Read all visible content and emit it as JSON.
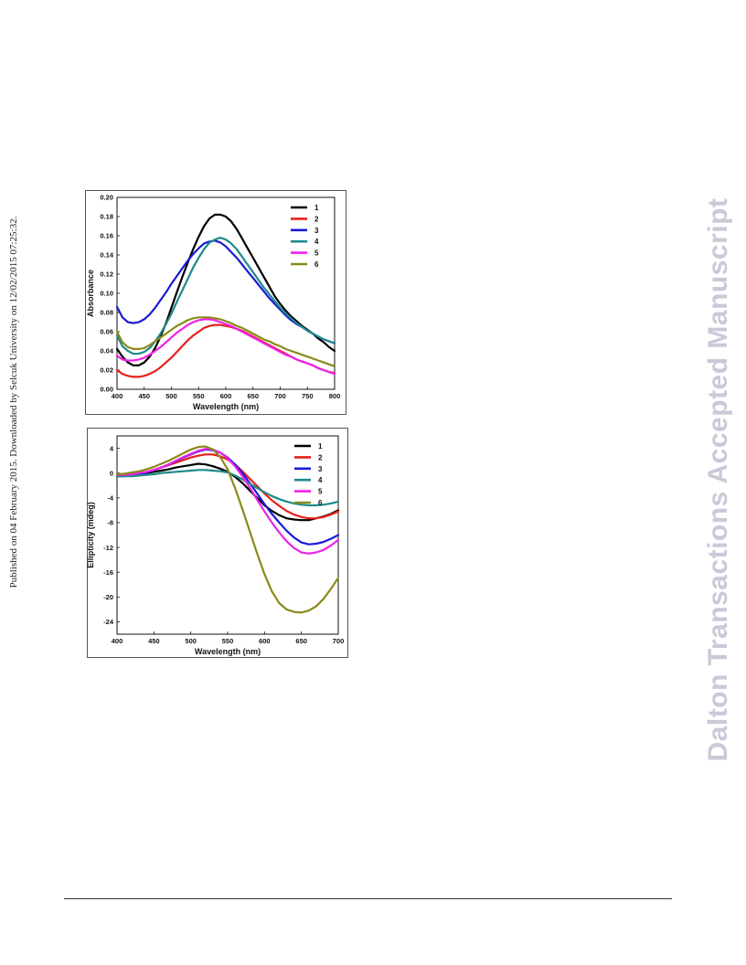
{
  "sidebar": {
    "text": "Published on 04 February 2015. Downloaded by Selcuk University on 12/02/2015 07:25:32."
  },
  "watermark": {
    "text": "Dalton Transactions Accepted Manuscript"
  },
  "chart_data": [
    {
      "type": "line",
      "xlabel": "Wavelength (nm)",
      "ylabel": "Absorbance",
      "xlim": [
        400,
        800
      ],
      "ylim": [
        0,
        0.2
      ],
      "xticks": [
        400,
        450,
        500,
        550,
        600,
        650,
        700,
        750,
        800
      ],
      "yticks": [
        0.0,
        0.02,
        0.04,
        0.06,
        0.08,
        0.1,
        0.12,
        0.14,
        0.16,
        0.18,
        0.2
      ],
      "ytick_decimals": 2,
      "grid": false,
      "legend_position": "top-right",
      "series": [
        {
          "name": "1",
          "color": "#000000",
          "x": [
            400,
            410,
            420,
            430,
            440,
            450,
            460,
            470,
            480,
            490,
            500,
            510,
            520,
            530,
            540,
            550,
            560,
            570,
            580,
            590,
            600,
            610,
            620,
            630,
            640,
            650,
            660,
            670,
            680,
            690,
            700,
            710,
            720,
            730,
            740,
            750,
            760,
            770,
            780,
            790,
            800
          ],
          "y": [
            0.042,
            0.034,
            0.028,
            0.025,
            0.025,
            0.028,
            0.034,
            0.043,
            0.055,
            0.069,
            0.085,
            0.101,
            0.117,
            0.132,
            0.146,
            0.159,
            0.17,
            0.178,
            0.182,
            0.182,
            0.18,
            0.175,
            0.167,
            0.157,
            0.147,
            0.137,
            0.127,
            0.117,
            0.107,
            0.097,
            0.089,
            0.082,
            0.076,
            0.071,
            0.066,
            0.062,
            0.058,
            0.053,
            0.049,
            0.044,
            0.04
          ]
        },
        {
          "name": "2",
          "color": "#e8201c",
          "x": [
            400,
            410,
            420,
            430,
            440,
            450,
            460,
            470,
            480,
            490,
            500,
            510,
            520,
            530,
            540,
            550,
            560,
            570,
            580,
            590,
            600,
            610,
            620,
            630,
            640,
            650,
            660,
            670,
            680,
            690,
            700,
            710,
            720,
            730,
            740,
            750,
            760,
            770,
            780,
            790,
            800
          ],
          "y": [
            0.02,
            0.016,
            0.014,
            0.013,
            0.013,
            0.014,
            0.016,
            0.019,
            0.023,
            0.028,
            0.033,
            0.039,
            0.045,
            0.051,
            0.056,
            0.06,
            0.064,
            0.066,
            0.067,
            0.067,
            0.066,
            0.065,
            0.063,
            0.061,
            0.058,
            0.055,
            0.052,
            0.049,
            0.046,
            0.043,
            0.04,
            0.037,
            0.034,
            0.031,
            0.029,
            0.027,
            0.025,
            0.022,
            0.02,
            0.018,
            0.017
          ]
        },
        {
          "name": "3",
          "color": "#1a1ad8",
          "x": [
            400,
            410,
            420,
            430,
            440,
            450,
            460,
            470,
            480,
            490,
            500,
            510,
            520,
            530,
            540,
            550,
            560,
            570,
            580,
            590,
            600,
            610,
            620,
            630,
            640,
            650,
            660,
            670,
            680,
            690,
            700,
            710,
            720,
            730,
            740,
            750,
            760,
            770,
            780,
            790,
            800
          ],
          "y": [
            0.086,
            0.075,
            0.07,
            0.069,
            0.07,
            0.073,
            0.078,
            0.085,
            0.093,
            0.101,
            0.11,
            0.118,
            0.126,
            0.134,
            0.141,
            0.147,
            0.152,
            0.154,
            0.155,
            0.153,
            0.149,
            0.143,
            0.137,
            0.13,
            0.123,
            0.116,
            0.109,
            0.102,
            0.095,
            0.089,
            0.083,
            0.077,
            0.072,
            0.068,
            0.065,
            0.061,
            0.058,
            0.055,
            0.052,
            0.05,
            0.048
          ]
        },
        {
          "name": "4",
          "color": "#1e8a8a",
          "x": [
            400,
            410,
            420,
            430,
            440,
            450,
            460,
            470,
            480,
            490,
            500,
            510,
            520,
            530,
            540,
            550,
            560,
            570,
            580,
            590,
            600,
            610,
            620,
            630,
            640,
            650,
            660,
            670,
            680,
            690,
            700,
            710,
            720,
            730,
            740,
            750,
            760,
            770,
            780,
            790,
            800
          ],
          "y": [
            0.056,
            0.045,
            0.04,
            0.037,
            0.037,
            0.039,
            0.043,
            0.05,
            0.058,
            0.068,
            0.079,
            0.091,
            0.103,
            0.115,
            0.127,
            0.137,
            0.146,
            0.153,
            0.156,
            0.158,
            0.156,
            0.152,
            0.146,
            0.138,
            0.13,
            0.122,
            0.114,
            0.106,
            0.099,
            0.092,
            0.085,
            0.079,
            0.074,
            0.069,
            0.065,
            0.061,
            0.058,
            0.055,
            0.052,
            0.05,
            0.048
          ]
        },
        {
          "name": "5",
          "color": "#f020e8",
          "x": [
            400,
            410,
            420,
            430,
            440,
            450,
            460,
            470,
            480,
            490,
            500,
            510,
            520,
            530,
            540,
            550,
            560,
            570,
            580,
            590,
            600,
            610,
            620,
            630,
            640,
            650,
            660,
            670,
            680,
            690,
            700,
            710,
            720,
            730,
            740,
            750,
            760,
            770,
            780,
            790,
            800
          ],
          "y": [
            0.035,
            0.031,
            0.03,
            0.03,
            0.031,
            0.033,
            0.036,
            0.04,
            0.044,
            0.049,
            0.054,
            0.059,
            0.063,
            0.067,
            0.07,
            0.072,
            0.073,
            0.073,
            0.072,
            0.07,
            0.068,
            0.066,
            0.063,
            0.06,
            0.057,
            0.054,
            0.051,
            0.048,
            0.045,
            0.042,
            0.039,
            0.036,
            0.034,
            0.031,
            0.029,
            0.027,
            0.025,
            0.022,
            0.02,
            0.018,
            0.016
          ]
        },
        {
          "name": "6",
          "color": "#8a8a1a",
          "x": [
            400,
            410,
            420,
            430,
            440,
            450,
            460,
            470,
            480,
            490,
            500,
            510,
            520,
            530,
            540,
            550,
            560,
            570,
            580,
            590,
            600,
            610,
            620,
            630,
            640,
            650,
            660,
            670,
            680,
            690,
            700,
            710,
            720,
            730,
            740,
            750,
            760,
            770,
            780,
            790,
            800
          ],
          "y": [
            0.06,
            0.049,
            0.044,
            0.042,
            0.042,
            0.043,
            0.046,
            0.05,
            0.054,
            0.058,
            0.062,
            0.066,
            0.069,
            0.072,
            0.074,
            0.075,
            0.075,
            0.075,
            0.074,
            0.073,
            0.071,
            0.069,
            0.066,
            0.064,
            0.061,
            0.058,
            0.055,
            0.052,
            0.05,
            0.047,
            0.045,
            0.042,
            0.04,
            0.038,
            0.036,
            0.034,
            0.032,
            0.03,
            0.028,
            0.026,
            0.024
          ]
        }
      ]
    },
    {
      "type": "line",
      "xlabel": "Wavelength (nm)",
      "ylabel": "Ellipticity (mdeg)",
      "xlim": [
        400,
        700
      ],
      "ylim": [
        -26,
        6
      ],
      "xticks": [
        400,
        450,
        500,
        550,
        600,
        650,
        700
      ],
      "yticks": [
        -24,
        -20,
        -16,
        -12,
        -8,
        -4,
        0,
        4
      ],
      "ytick_decimals": 0,
      "grid": false,
      "legend_position": "top-right",
      "series": [
        {
          "name": "1",
          "color": "#000000",
          "x": [
            400,
            410,
            420,
            430,
            440,
            450,
            460,
            470,
            480,
            490,
            500,
            510,
            520,
            530,
            540,
            550,
            560,
            570,
            580,
            590,
            600,
            610,
            620,
            630,
            640,
            650,
            660,
            670,
            680,
            690,
            700
          ],
          "y": [
            -0.3,
            -0.3,
            -0.2,
            -0.1,
            0.0,
            0.2,
            0.4,
            0.6,
            0.9,
            1.1,
            1.3,
            1.5,
            1.4,
            1.1,
            0.7,
            0.2,
            -0.6,
            -1.6,
            -2.8,
            -4.0,
            -5.2,
            -6.1,
            -6.8,
            -7.3,
            -7.5,
            -7.6,
            -7.6,
            -7.3,
            -7.0,
            -6.6,
            -6.0
          ]
        },
        {
          "name": "2",
          "color": "#e8201c",
          "x": [
            400,
            410,
            420,
            430,
            440,
            450,
            460,
            470,
            480,
            490,
            500,
            510,
            520,
            530,
            540,
            550,
            560,
            570,
            580,
            590,
            600,
            610,
            620,
            630,
            640,
            650,
            660,
            670,
            680,
            690,
            700
          ],
          "y": [
            -0.3,
            -0.3,
            -0.2,
            0.0,
            0.2,
            0.5,
            0.9,
            1.3,
            1.7,
            2.1,
            2.5,
            2.8,
            3.0,
            3.0,
            2.7,
            2.2,
            1.4,
            0.3,
            -0.9,
            -2.1,
            -3.3,
            -4.4,
            -5.3,
            -6.1,
            -6.7,
            -7.1,
            -7.3,
            -7.3,
            -7.1,
            -6.7,
            -6.2
          ]
        },
        {
          "name": "3",
          "color": "#1a1ad8",
          "x": [
            400,
            410,
            420,
            430,
            440,
            450,
            460,
            470,
            480,
            490,
            500,
            510,
            520,
            530,
            540,
            550,
            560,
            570,
            580,
            590,
            600,
            610,
            620,
            630,
            640,
            650,
            660,
            670,
            680,
            690,
            700
          ],
          "y": [
            -0.5,
            -0.5,
            -0.4,
            -0.2,
            0.1,
            0.5,
            0.9,
            1.4,
            1.9,
            2.5,
            3.0,
            3.5,
            3.8,
            3.7,
            3.3,
            2.5,
            1.4,
            0.0,
            -1.6,
            -3.3,
            -5.0,
            -6.6,
            -8.0,
            -9.3,
            -10.4,
            -11.2,
            -11.5,
            -11.4,
            -11.1,
            -10.6,
            -10.0
          ]
        },
        {
          "name": "4",
          "color": "#1e8a8a",
          "x": [
            400,
            410,
            420,
            430,
            440,
            450,
            460,
            470,
            480,
            490,
            500,
            510,
            520,
            530,
            540,
            550,
            560,
            570,
            580,
            590,
            600,
            610,
            620,
            630,
            640,
            650,
            660,
            670,
            680,
            690,
            700
          ],
          "y": [
            -0.5,
            -0.5,
            -0.5,
            -0.4,
            -0.3,
            -0.2,
            0.0,
            0.1,
            0.2,
            0.3,
            0.4,
            0.5,
            0.5,
            0.4,
            0.3,
            0.1,
            -0.4,
            -1.0,
            -1.7,
            -2.4,
            -3.1,
            -3.7,
            -4.2,
            -4.6,
            -4.9,
            -5.1,
            -5.2,
            -5.2,
            -5.1,
            -4.9,
            -4.6
          ]
        },
        {
          "name": "5",
          "color": "#f020e8",
          "x": [
            400,
            410,
            420,
            430,
            440,
            450,
            460,
            470,
            480,
            490,
            500,
            510,
            520,
            530,
            540,
            550,
            560,
            570,
            580,
            590,
            600,
            610,
            620,
            630,
            640,
            650,
            660,
            670,
            680,
            690,
            700
          ],
          "y": [
            -0.3,
            -0.3,
            -0.2,
            0.0,
            0.2,
            0.5,
            0.9,
            1.4,
            2.0,
            2.6,
            3.1,
            3.6,
            3.9,
            3.8,
            3.3,
            2.4,
            1.1,
            -0.5,
            -2.3,
            -4.3,
            -6.2,
            -8.0,
            -9.6,
            -11.0,
            -12.1,
            -12.8,
            -13.0,
            -12.8,
            -12.4,
            -11.7,
            -10.8
          ]
        },
        {
          "name": "6",
          "color": "#8a8a1a",
          "x": [
            400,
            410,
            420,
            430,
            440,
            450,
            460,
            470,
            480,
            490,
            500,
            510,
            520,
            530,
            540,
            550,
            560,
            570,
            580,
            590,
            600,
            610,
            620,
            630,
            640,
            650,
            660,
            670,
            680,
            690,
            700
          ],
          "y": [
            -0.2,
            -0.1,
            0.1,
            0.3,
            0.6,
            1.0,
            1.5,
            2.0,
            2.6,
            3.2,
            3.8,
            4.2,
            4.3,
            3.8,
            2.6,
            0.6,
            -2.4,
            -5.8,
            -9.4,
            -13.0,
            -16.3,
            -19.1,
            -21.0,
            -22.0,
            -22.4,
            -22.5,
            -22.2,
            -21.5,
            -20.3,
            -18.7,
            -16.9
          ]
        }
      ]
    }
  ]
}
